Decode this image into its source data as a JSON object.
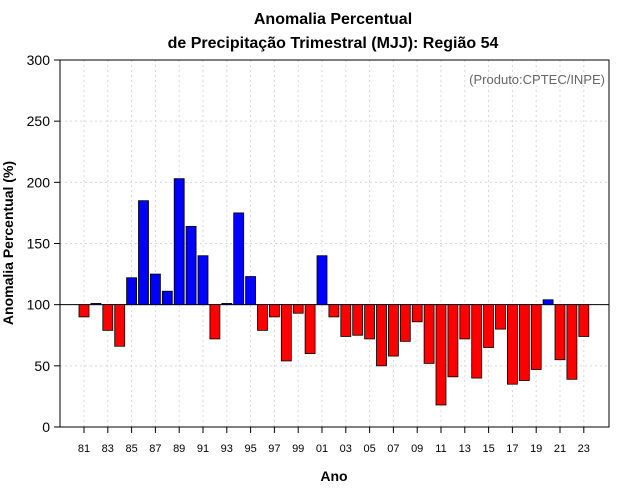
{
  "chart_data": {
    "type": "bar",
    "title_line1": "Anomalia Percentual",
    "title_line2": "de Precipitação Trimestral (MJJ): Região 54",
    "credit": "(Produto:CPTEC/INPE)",
    "xlabel": "Ano",
    "ylabel": "Anomalia Percentual (%)",
    "ylim": [
      0,
      300
    ],
    "yticks": [
      "0",
      "50",
      "100",
      "150",
      "200",
      "250",
      "300"
    ],
    "baseline": 100,
    "grid": true,
    "categories": [
      "1981",
      "1982",
      "1983",
      "1984",
      "1985",
      "1986",
      "1987",
      "1988",
      "1989",
      "1990",
      "1991",
      "1992",
      "1993",
      "1994",
      "1995",
      "1996",
      "1997",
      "1998",
      "1999",
      "2000",
      "2001",
      "2002",
      "2003",
      "2004",
      "2005",
      "2006",
      "2007",
      "2008",
      "2009",
      "2010",
      "2011",
      "2012",
      "2013",
      "2014",
      "2015",
      "2016",
      "2017",
      "2018",
      "2019",
      "2020",
      "2021",
      "2022",
      "2023"
    ],
    "xtick_labels": [
      "81",
      "83",
      "85",
      "87",
      "89",
      "91",
      "93",
      "95",
      "97",
      "99",
      "01",
      "03",
      "05",
      "07",
      "09",
      "11",
      "13",
      "15",
      "17",
      "19",
      "21",
      "23"
    ],
    "values": [
      90,
      101,
      79,
      66,
      122,
      185,
      125,
      111,
      203,
      164,
      140,
      72,
      101,
      175,
      123,
      79,
      90,
      54,
      93,
      60,
      140,
      90,
      74,
      75,
      72,
      50,
      58,
      70,
      86,
      52,
      18,
      41,
      72,
      40,
      65,
      80,
      35,
      38,
      47,
      104,
      55,
      39,
      74
    ],
    "colors": {
      "above": "#0000ff",
      "below": "#ff0000",
      "edge": "#000000",
      "grid": "#d9d9d9"
    }
  }
}
